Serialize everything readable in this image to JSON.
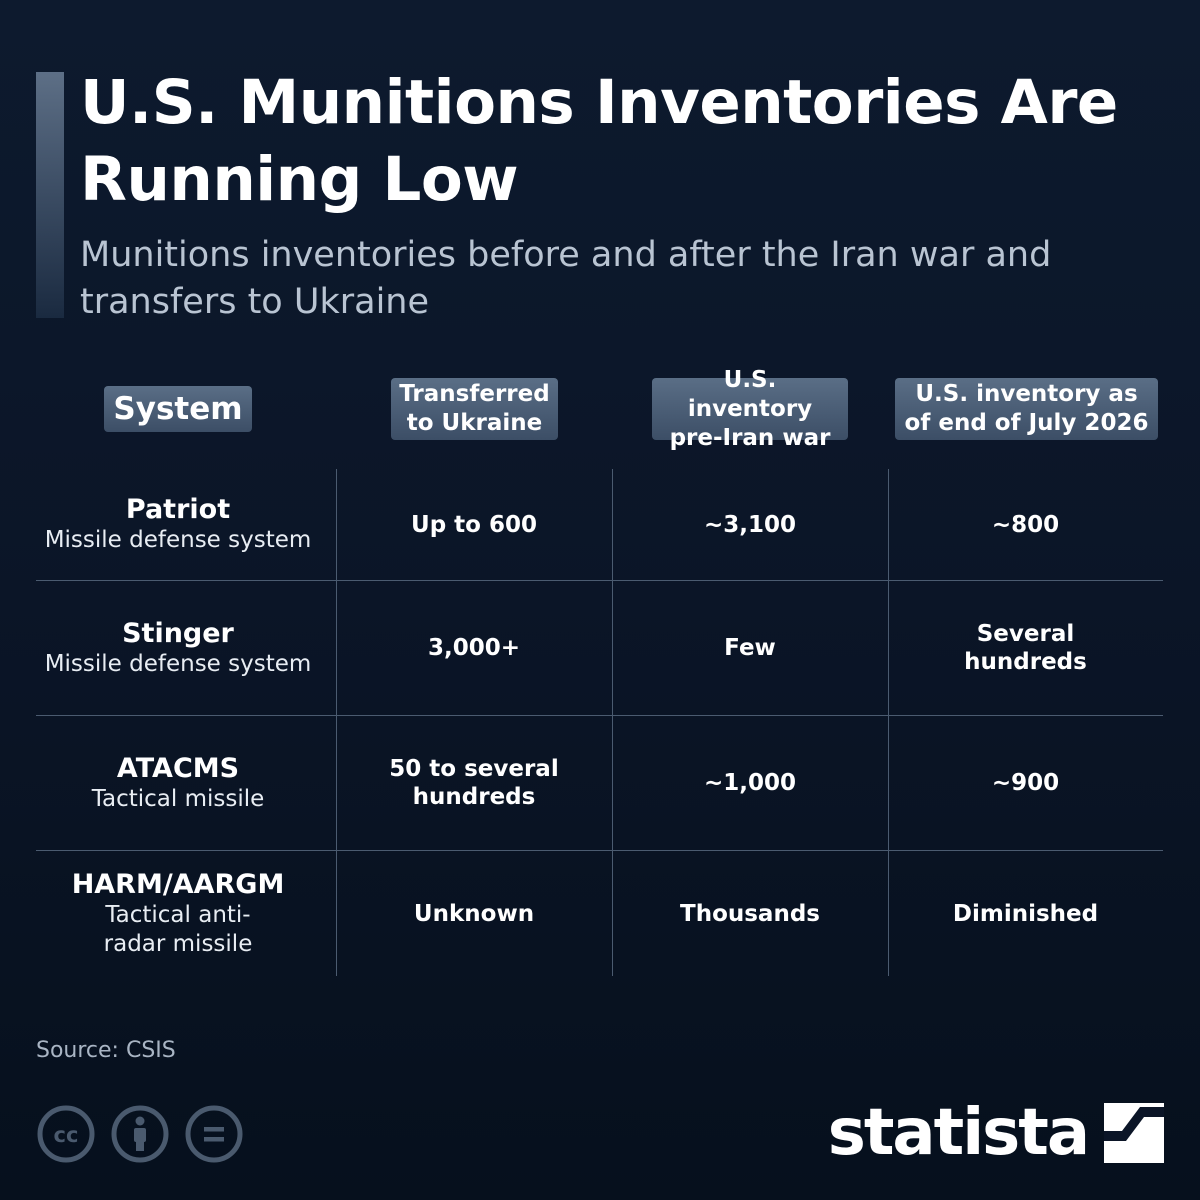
{
  "title": "U.S. Munitions Inventories Are Running Low",
  "subtitle": "Munitions inventories before and after the Iran war and transfers to Ukraine",
  "chart_data": {
    "type": "table",
    "columns": [
      {
        "label": "System"
      },
      {
        "label": "Transferred to Ukraine"
      },
      {
        "label": "U.S. inventory pre-Iran war"
      },
      {
        "label": "U.S. inventory as of end of July 2026"
      }
    ],
    "rows": [
      {
        "name": "Patriot",
        "type": "Missile defense system",
        "transferred": "Up to 600",
        "pre_war": "~3,100",
        "july_2026": "~800"
      },
      {
        "name": "Stinger",
        "type": "Missile defense system",
        "transferred": "3,000+",
        "pre_war": "Few",
        "july_2026": "Several hundreds"
      },
      {
        "name": "ATACMS",
        "type": "Tactical missile",
        "transferred": "50 to several hundreds",
        "pre_war": "~1,000",
        "july_2026": "~900"
      },
      {
        "name": "HARM/AARGM",
        "type": "Tactical anti-radar missile",
        "transferred": "Unknown",
        "pre_war": "Thousands",
        "july_2026": "Diminished"
      }
    ]
  },
  "source": "Source: CSIS",
  "brand": "statista",
  "icons": [
    "cc-icon",
    "attribution-icon",
    "no-derivatives-icon",
    "statista-logo-icon"
  ],
  "colors": {
    "background": "#0b1527",
    "header_chip": "#4a5d75",
    "divider": "#4b5b70",
    "subtitle": "#b9c4d2"
  }
}
